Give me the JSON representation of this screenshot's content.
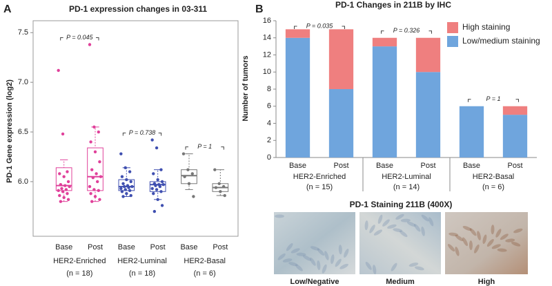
{
  "chart_data": [
    {
      "type": "box",
      "panel": "A",
      "title": "PD-1 expression changes in 03-311",
      "ylabel": "PD-1 Gene expression (log2)",
      "categories": [
        "Base",
        "Post",
        "Base",
        "Post",
        "Base",
        "Post"
      ],
      "groups": [
        {
          "label": "HER2-Enriched",
          "note": "(n = 18)"
        },
        {
          "label": "HER2-Luminal",
          "note": "(n = 18)"
        },
        {
          "label": "HER2-Basal",
          "note": "(n = 6)"
        }
      ],
      "annotations": [
        "P = 0.045",
        "P = 0.738",
        "P = 1"
      ],
      "ylim": [
        5.45,
        7.62
      ],
      "yticks": [
        {
          "value": 6,
          "label": "6.0"
        },
        6.5,
        {
          "value": 7,
          "label": "7.0"
        },
        7.5
      ],
      "boxes": [
        {
          "color": "#e0409a",
          "min": 5.8,
          "q1": 5.91,
          "median": 5.96,
          "q3": 6.14,
          "max": 6.22,
          "points": [
            7.12,
            6.48,
            6.1,
            6.08,
            6.05,
            6.0,
            5.97,
            5.96,
            5.95,
            5.93,
            5.92,
            5.91,
            5.9,
            5.88,
            5.86,
            5.84,
            5.82,
            5.8
          ]
        },
        {
          "color": "#e0409a",
          "min": 5.8,
          "q1": 5.91,
          "median": 6.05,
          "q3": 6.34,
          "max": 6.55,
          "points": [
            7.38,
            6.55,
            6.5,
            6.4,
            6.3,
            6.2,
            6.12,
            6.08,
            6.05,
            6.04,
            6.0,
            5.95,
            5.92,
            5.91,
            5.88,
            5.85,
            5.82,
            5.8
          ]
        },
        {
          "color": "#3f4fb0",
          "min": 5.85,
          "q1": 5.91,
          "median": 5.95,
          "q3": 6.02,
          "max": 6.14,
          "points": [
            6.28,
            6.14,
            6.1,
            6.05,
            6.02,
            6.0,
            5.98,
            5.96,
            5.95,
            5.95,
            5.94,
            5.93,
            5.92,
            5.91,
            5.9,
            5.88,
            5.86,
            5.85
          ]
        },
        {
          "color": "#3f4fb0",
          "min": 5.82,
          "q1": 5.9,
          "median": 5.97,
          "q3": 6.0,
          "max": 6.12,
          "points": [
            6.42,
            6.34,
            6.12,
            6.08,
            6.02,
            6.0,
            5.98,
            5.97,
            5.97,
            5.96,
            5.95,
            5.93,
            5.92,
            5.9,
            5.88,
            5.82,
            5.76,
            5.7
          ]
        },
        {
          "color": "#777777",
          "min": 5.92,
          "q1": 5.98,
          "median": 6.06,
          "q3": 6.12,
          "max": 6.28,
          "points": [
            6.28,
            6.12,
            6.08,
            6.05,
            5.98,
            5.85
          ]
        },
        {
          "color": "#777777",
          "min": 5.86,
          "q1": 5.9,
          "median": 5.94,
          "q3": 5.98,
          "max": 6.12,
          "points": [
            6.12,
            5.98,
            5.95,
            5.94,
            5.9,
            5.86
          ]
        }
      ]
    },
    {
      "type": "stacked_bar",
      "panel": "B",
      "title": "PD-1 Changes in 211B by IHC",
      "ylabel": "Number of tumors",
      "categories": [
        "Base",
        "Post",
        "Base",
        "Post",
        "Base",
        "Post"
      ],
      "groups": [
        {
          "label": "HER2-Enriched",
          "note": "(n = 15)"
        },
        {
          "label": "HER2-Luminal",
          "note": "(n = 14)"
        },
        {
          "label": "HER2-Basal",
          "note": "(n = 6)"
        }
      ],
      "annotations": [
        "P = 0.035",
        "P = 0.326",
        "P = 1"
      ],
      "ylim": [
        0,
        16
      ],
      "yticks": [
        0,
        2,
        4,
        6,
        8,
        10,
        12,
        14,
        16
      ],
      "legend": "upper right",
      "series": [
        {
          "name": "Low/medium staining",
          "color": "#6fa5dd",
          "values": [
            14,
            8,
            13,
            10,
            6,
            5
          ]
        },
        {
          "name": "High staining",
          "color": "#ef7f7f",
          "values": [
            1,
            7,
            1,
            4,
            0,
            1
          ]
        }
      ]
    }
  ],
  "staining": {
    "title": "PD-1 Staining 211B (400X)",
    "labels": [
      "Low/Negative",
      "Medium",
      "High"
    ]
  }
}
